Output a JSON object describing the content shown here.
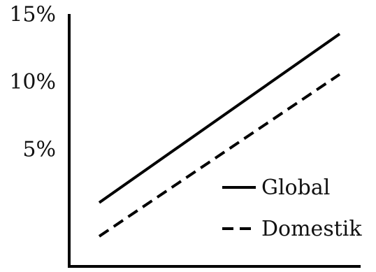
{
  "chart_data": {
    "type": "line",
    "title": "",
    "xlabel": "",
    "ylabel": "",
    "x": [
      0,
      1
    ],
    "xlim": [
      0,
      1
    ],
    "ylim": [
      -4.5,
      16
    ],
    "yticks": [
      {
        "value": 15,
        "label": "15%"
      },
      {
        "value": 10,
        "label": "10%"
      },
      {
        "value": 5,
        "label": "5%"
      }
    ],
    "series": [
      {
        "name": "Global",
        "style": "solid",
        "color": "#000000",
        "values": [
          1.0,
          13.5
        ]
      },
      {
        "name": "Domestik",
        "style": "dashed",
        "color": "#000000",
        "values": [
          -1.5,
          10.5
        ]
      }
    ],
    "legend": {
      "position": "bottom-right"
    },
    "grid": false
  }
}
